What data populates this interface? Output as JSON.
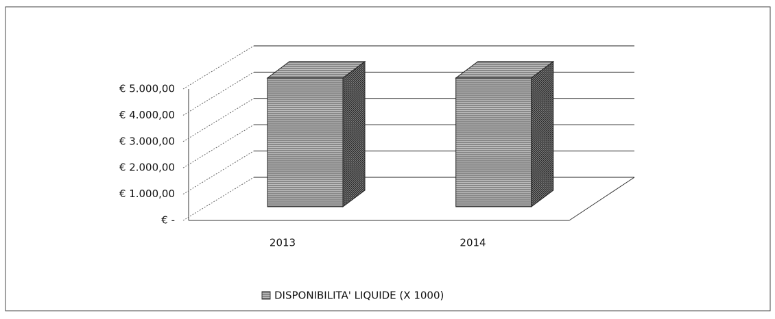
{
  "chart_data": {
    "type": "bar3d",
    "categories": [
      "2013",
      "2014"
    ],
    "series": [
      {
        "name": "DISPONIBILITA' LIQUIDE (X 1000)",
        "color": "#9a9a9a",
        "values": [
          4900,
          4900
        ]
      }
    ],
    "ylim": [
      0,
      5000
    ],
    "yticks": [
      {
        "value": 0,
        "label": "€ -"
      },
      {
        "value": 1000,
        "label": "€ 1.000,00"
      },
      {
        "value": 2000,
        "label": "€ 2.000,00"
      },
      {
        "value": 3000,
        "label": "€ 3.000,00"
      },
      {
        "value": 4000,
        "label": "€ 4.000,00"
      },
      {
        "value": 5000,
        "label": "€ 5.000,00"
      }
    ],
    "grid": true
  }
}
